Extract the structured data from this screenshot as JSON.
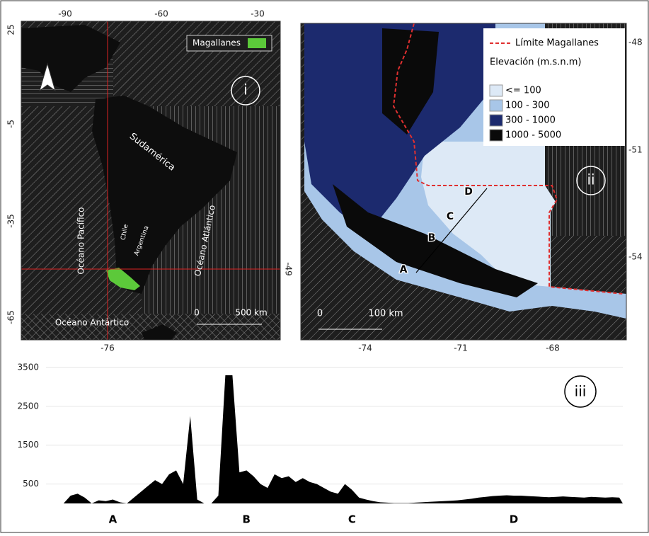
{
  "left_map": {
    "legend": {
      "label": "Magallanes",
      "color": "#5cc93a"
    },
    "top_ticks": [
      -90,
      -60,
      -30
    ],
    "left_ticks": [
      25,
      -5,
      -35,
      -65
    ],
    "bottom_tick": -76,
    "right_tick": -49,
    "labels": {
      "continent": "Sudamérica",
      "chile": "Chile",
      "argentina": "Argentina",
      "pacific": "Océano Pacífico",
      "atlantic": "Océano Atlántico",
      "antarctic": "Océano Antártico"
    },
    "scale": {
      "start": "0",
      "end": "500 km"
    },
    "panel": "i"
  },
  "right_map": {
    "boundary": "Límite Magallanes",
    "legend_title": "Elevación (m.s.n.m)",
    "classes": [
      {
        "label": "<= 100",
        "color": "#dde9f6"
      },
      {
        "label": "100 - 300",
        "color": "#a8c6e8"
      },
      {
        "label": "300 - 1000",
        "color": "#1c2a6e"
      },
      {
        "label": "1000 - 5000",
        "color": "#0a0a0a"
      }
    ],
    "right_ticks": [
      -48,
      -51,
      -54
    ],
    "bottom_ticks": [
      -74,
      -71,
      -68
    ],
    "points": [
      "A",
      "B",
      "C",
      "D"
    ],
    "scale": {
      "start": "0",
      "end": "100 km"
    },
    "panel": "ii"
  },
  "chart_data": {
    "type": "area",
    "annotation": "iii",
    "color": "#000000",
    "categories": [
      null,
      null,
      null,
      null,
      null,
      null,
      null,
      null,
      null,
      "A",
      null,
      null,
      null,
      null,
      null,
      null,
      null,
      null,
      null,
      null,
      null,
      null,
      null,
      null,
      null,
      null,
      null,
      null,
      "B",
      null,
      null,
      null,
      null,
      null,
      null,
      null,
      null,
      null,
      null,
      null,
      null,
      null,
      null,
      "C",
      null,
      null,
      null,
      null,
      null,
      null,
      null,
      null,
      null,
      null,
      null,
      null,
      null,
      null,
      null,
      null,
      null,
      null,
      null,
      null,
      null,
      null,
      "D",
      null,
      null,
      null,
      null,
      null,
      null,
      null,
      null,
      null,
      null,
      null,
      null,
      null,
      null,
      null
    ],
    "values": [
      0,
      0,
      0,
      200,
      250,
      150,
      0,
      80,
      60,
      100,
      30,
      0,
      150,
      300,
      450,
      600,
      500,
      750,
      850,
      500,
      2250,
      100,
      0,
      0,
      200,
      3300,
      3300,
      800,
      850,
      700,
      500,
      400,
      750,
      650,
      700,
      550,
      650,
      550,
      500,
      400,
      300,
      250,
      500,
      350,
      150,
      100,
      60,
      30,
      20,
      10,
      10,
      10,
      20,
      30,
      40,
      50,
      60,
      70,
      80,
      100,
      120,
      150,
      170,
      190,
      200,
      210,
      200,
      200,
      190,
      180,
      170,
      160,
      170,
      180,
      170,
      160,
      150,
      170,
      160,
      150,
      160,
      150
    ],
    "ylim": [
      0,
      3500
    ],
    "yticks": [
      500,
      1500,
      2500,
      3500
    ],
    "grid": true
  }
}
